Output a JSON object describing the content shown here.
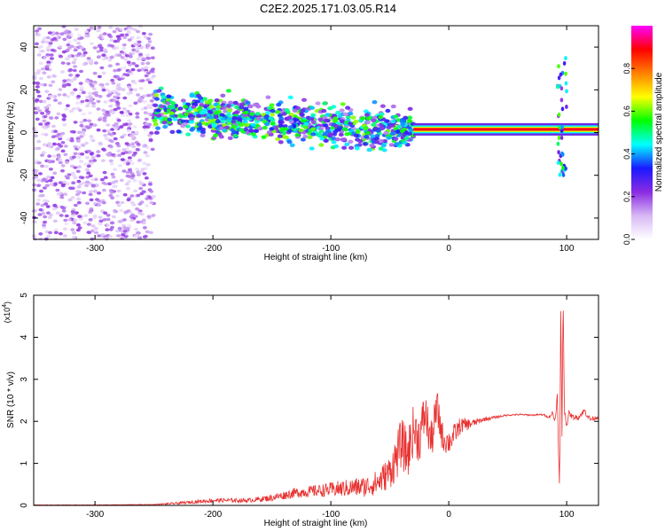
{
  "figure": {
    "title": "C2E2.2025.171.03.05.R14"
  },
  "chart_data": [
    {
      "type": "heatmap",
      "xlabel": "Height of straight line (km)",
      "ylabel": "Frequency (Hz)",
      "xlim": [
        -352,
        127
      ],
      "ylim": [
        -50,
        50
      ],
      "x_ticks": [
        -300,
        -200,
        -100,
        0,
        100
      ],
      "y_ticks": [
        -40,
        -20,
        0,
        20,
        40
      ],
      "colorbar": {
        "label": "Normalized spectral amplitude",
        "range": [
          0,
          1
        ],
        "ticks": [
          0.0,
          0.2,
          0.4,
          0.6,
          0.8
        ],
        "tick_labels": [
          "0.0",
          "0.2",
          "0.4",
          "0.6",
          "0.8"
        ],
        "colormap": [
          "#ffffff",
          "#d7b8f5",
          "#8a2be2",
          "#1a1aff",
          "#00ffff",
          "#00ff00",
          "#ffff00",
          "#ff8000",
          "#ff0000",
          "#ff00ff"
        ]
      },
      "regions": [
        {
          "name": "noise",
          "x_range": [
            -352,
            -250
          ],
          "freq_range": [
            -50,
            50
          ],
          "amplitude": 0.15
        },
        {
          "name": "scattered-signal",
          "x_range": [
            -250,
            -30
          ],
          "freq_start": [
            -250,
            10
          ],
          "freq_end": [
            -30,
            0
          ],
          "amplitude": 0.35
        },
        {
          "name": "steady-tone",
          "x_range": [
            -30,
            127
          ],
          "freq": 1.5,
          "amplitude": 0.9
        },
        {
          "name": "spike",
          "x_range": [
            92,
            100
          ],
          "freq_range": [
            -20,
            35
          ],
          "amplitude": 0.4
        }
      ]
    },
    {
      "type": "line",
      "xlabel": "Height of straight line (km)",
      "ylabel": "SNR (10 * v/v)",
      "y_multiplier": "(x10",
      "y_multiplier_exp": "4",
      "y_multiplier_close": ")",
      "xlim": [
        -352,
        127
      ],
      "ylim": [
        0,
        5
      ],
      "x_ticks": [
        -300,
        -200,
        -100,
        0,
        100
      ],
      "y_ticks": [
        0,
        1,
        2,
        3,
        4,
        5
      ],
      "series": [
        {
          "color": "#e8302f",
          "x": [
            -352,
            -300,
            -250,
            -230,
            -200,
            -170,
            -150,
            -130,
            -110,
            -90,
            -70,
            -60,
            -50,
            -45,
            -40,
            -35,
            -30,
            -25,
            -20,
            -15,
            -10,
            -5,
            0,
            5,
            10,
            20,
            30,
            40,
            50,
            60,
            70,
            80,
            85,
            88,
            90,
            92,
            94,
            95,
            96,
            97,
            98,
            100,
            102,
            105,
            110,
            115,
            120,
            127
          ],
          "y": [
            0.01,
            0.01,
            0.02,
            0.05,
            0.12,
            0.12,
            0.18,
            0.3,
            0.35,
            0.4,
            0.45,
            0.55,
            0.8,
            1.1,
            1.5,
            1.2,
            1.8,
            1.6,
            2.2,
            1.5,
            2.3,
            1.6,
            1.5,
            1.7,
            1.9,
            1.95,
            2.05,
            2.1,
            2.15,
            2.16,
            2.15,
            2.16,
            2.1,
            2.2,
            2.0,
            2.6,
            0.3,
            4.8,
            1.5,
            5.1,
            2.3,
            1.9,
            2.2,
            2.1,
            2.1,
            2.25,
            2.05,
            2.1
          ],
          "noise_amplitude": [
            0.005,
            0.005,
            0.01,
            0.03,
            0.05,
            0.05,
            0.08,
            0.12,
            0.15,
            0.2,
            0.25,
            0.3,
            0.4,
            0.55,
            0.6,
            0.6,
            0.6,
            0.6,
            0.55,
            0.5,
            0.5,
            0.35,
            0.3,
            0.25,
            0.2,
            0.1,
            0.05,
            0.03,
            0.02,
            0.02,
            0.02,
            0.02,
            0.03,
            0.05,
            0.05,
            0.1,
            0.1,
            0.1,
            0.1,
            0.1,
            0.1,
            0.05,
            0.06,
            0.06,
            0.06,
            0.08,
            0.06,
            0.04
          ]
        }
      ]
    }
  ]
}
